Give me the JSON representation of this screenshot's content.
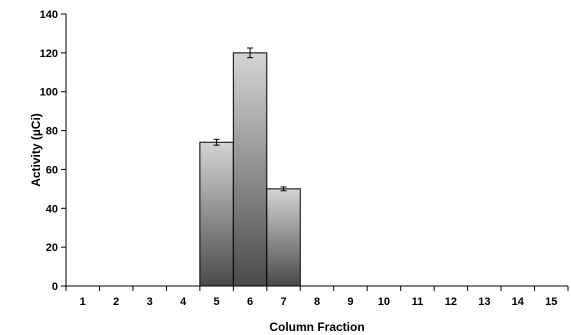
{
  "chart_data": {
    "type": "bar",
    "title": "",
    "xlabel": "Column Fraction",
    "ylabel": "Activity (µCi)",
    "categories": [
      "1",
      "2",
      "3",
      "4",
      "5",
      "6",
      "7",
      "8",
      "9",
      "10",
      "11",
      "12",
      "13",
      "14",
      "15"
    ],
    "values": [
      0,
      0,
      0,
      0,
      74,
      120,
      50,
      0,
      0,
      0,
      0,
      0,
      0,
      0,
      0
    ],
    "errors": [
      0,
      0,
      0,
      0,
      1.5,
      2.5,
      1.0,
      0,
      0,
      0,
      0,
      0,
      0,
      0,
      0
    ],
    "ylim": [
      0,
      140
    ],
    "yticks": [
      "0",
      "20",
      "40",
      "60",
      "80",
      "100",
      "120",
      "140"
    ],
    "grid": false,
    "legend": "none",
    "bar_colors": {
      "light": "#d4d4d4",
      "dark": "#4a4a4a",
      "edge": "#000000"
    }
  }
}
